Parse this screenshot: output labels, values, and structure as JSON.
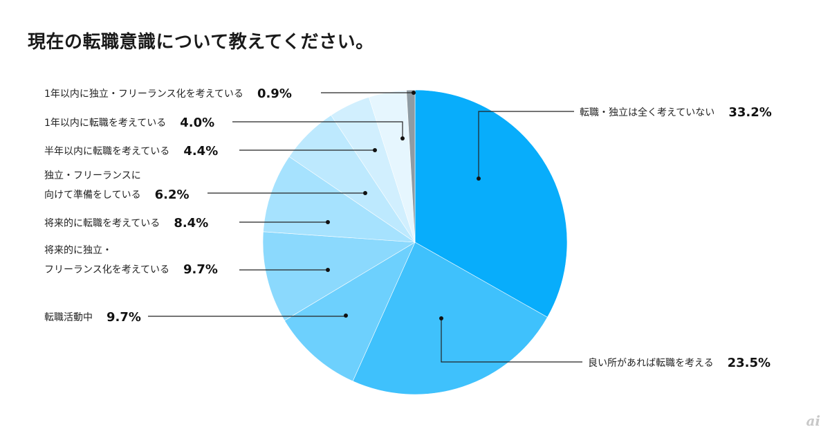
{
  "title": "現在の転職意識について教えてください。",
  "watermark": "ai",
  "chart_data": {
    "type": "pie",
    "title": "現在の転職意識について教えてください。",
    "start_angle_deg": 0,
    "direction": "clockwise",
    "slices": [
      {
        "label": [
          "転職・独立は全く考えていない"
        ],
        "value": 33.2,
        "value_label": "33.2%",
        "color": "#08adfb"
      },
      {
        "label": [
          "良い所があれば転職を考える"
        ],
        "value": 23.5,
        "value_label": "23.5%",
        "color": "#3fc1fc"
      },
      {
        "label": [
          "転職活動中"
        ],
        "value": 9.7,
        "value_label": "9.7%",
        "color": "#6dd0fd"
      },
      {
        "label": [
          "将来的に独立・",
          "フリーランス化を考えている"
        ],
        "value": 9.7,
        "value_label": "9.7%",
        "color": "#8bd9fd"
      },
      {
        "label": [
          "将来的に転職を考えている"
        ],
        "value": 8.4,
        "value_label": "8.4%",
        "color": "#a6e2fe"
      },
      {
        "label": [
          "独立・フリーランスに",
          "向けて準備をしている"
        ],
        "value": 6.2,
        "value_label": "6.2%",
        "color": "#bde9fe"
      },
      {
        "label": [
          "半年以内に転職を考えている"
        ],
        "value": 4.4,
        "value_label": "4.4%",
        "color": "#d1effe"
      },
      {
        "label": [
          "1年以内に転職を考えている"
        ],
        "value": 4.0,
        "value_label": "4.0%",
        "color": "#e6f6fe"
      },
      {
        "label": [
          "1年以内に独立・フリーランス化を考えている"
        ],
        "value": 0.9,
        "value_label": "0.9%",
        "color": "#8e9ba3"
      }
    ]
  }
}
